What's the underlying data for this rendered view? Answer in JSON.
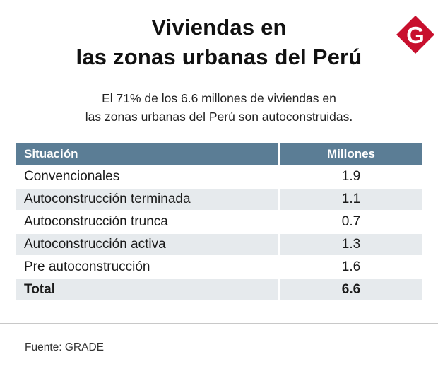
{
  "title_line1": "Viviendas en",
  "title_line2": "las zonas urbanas del Perú",
  "subtitle_line1": "El 71% de los 6.6 millones de viviendas en",
  "subtitle_line2": "las zonas urbanas del Perú son autoconstruidas.",
  "logo_letter": "G",
  "logo_color": "#c8102e",
  "header_color": "#5b7d95",
  "stripe_color": "#e6eaed",
  "chart_data": {
    "type": "table",
    "columns": [
      "Situación",
      "Millones"
    ],
    "rows": [
      {
        "label": "Convencionales",
        "value": "1.9"
      },
      {
        "label": "Autoconstrucción terminada",
        "value": "1.1"
      },
      {
        "label": "Autoconstrucción trunca",
        "value": "0.7"
      },
      {
        "label": "Autoconstrucción activa",
        "value": "1.3"
      },
      {
        "label": "Pre autoconstrucción",
        "value": "1.6"
      },
      {
        "label": "Total",
        "value": "6.6"
      }
    ],
    "title": "Viviendas en las zonas urbanas del Perú",
    "units": "Millones"
  },
  "source": "Fuente: GRADE"
}
